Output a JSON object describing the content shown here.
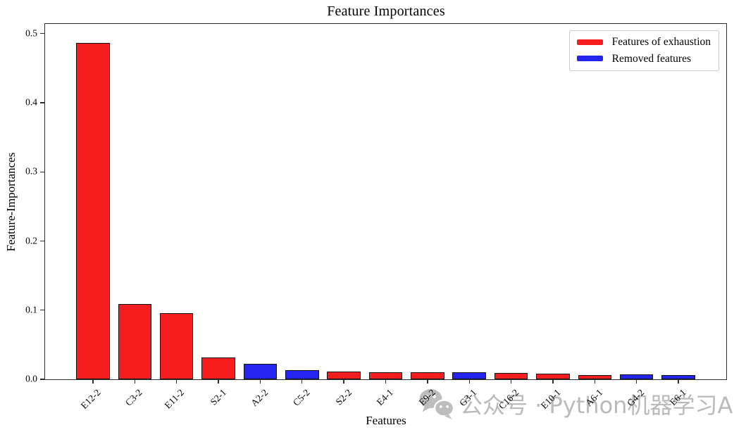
{
  "chart_data": {
    "type": "bar",
    "title": "Feature Importances",
    "xlabel": "Features",
    "ylabel": "Feature-Importances",
    "ylim": [
      0,
      0.514
    ],
    "ytick_labels": [
      "0.0",
      "0.1",
      "0.2",
      "0.3",
      "0.4",
      "0.5"
    ],
    "grid": false,
    "colors": {
      "exhaustion": "#f51d1d",
      "removed": "#2424f0"
    },
    "edge_color": "#141414",
    "legend": {
      "position": "upper right",
      "entries": [
        {
          "label": "Features of exhaustion",
          "color": "#f51d1d",
          "group": "exhaustion"
        },
        {
          "label": "Removed features",
          "color": "#2424f0",
          "group": "removed"
        }
      ]
    },
    "bars": [
      {
        "label": "E12-2",
        "value": 0.487,
        "group": "exhaustion"
      },
      {
        "label": "C3-2",
        "value": 0.109,
        "group": "exhaustion"
      },
      {
        "label": "E11-2",
        "value": 0.096,
        "group": "exhaustion"
      },
      {
        "label": "S2-1",
        "value": 0.032,
        "group": "exhaustion"
      },
      {
        "label": "A2-2",
        "value": 0.022,
        "group": "removed"
      },
      {
        "label": "C5-2",
        "value": 0.013,
        "group": "removed"
      },
      {
        "label": "S2-2",
        "value": 0.011,
        "group": "exhaustion"
      },
      {
        "label": "E4-1",
        "value": 0.01,
        "group": "exhaustion"
      },
      {
        "label": "E9-2",
        "value": 0.01,
        "group": "exhaustion"
      },
      {
        "label": "G3-1",
        "value": 0.01,
        "group": "removed"
      },
      {
        "label": "C16-2",
        "value": 0.009,
        "group": "exhaustion"
      },
      {
        "label": "E10-1",
        "value": 0.008,
        "group": "exhaustion"
      },
      {
        "label": "A6-1",
        "value": 0.006,
        "group": "exhaustion"
      },
      {
        "label": "G4-2",
        "value": 0.007,
        "group": "removed"
      },
      {
        "label": "E6-1",
        "value": 0.006,
        "group": "removed"
      }
    ]
  },
  "watermark": {
    "text": "公众号 · Python机器学习AI",
    "icon": "wechat-icon",
    "color": "#bababa"
  }
}
